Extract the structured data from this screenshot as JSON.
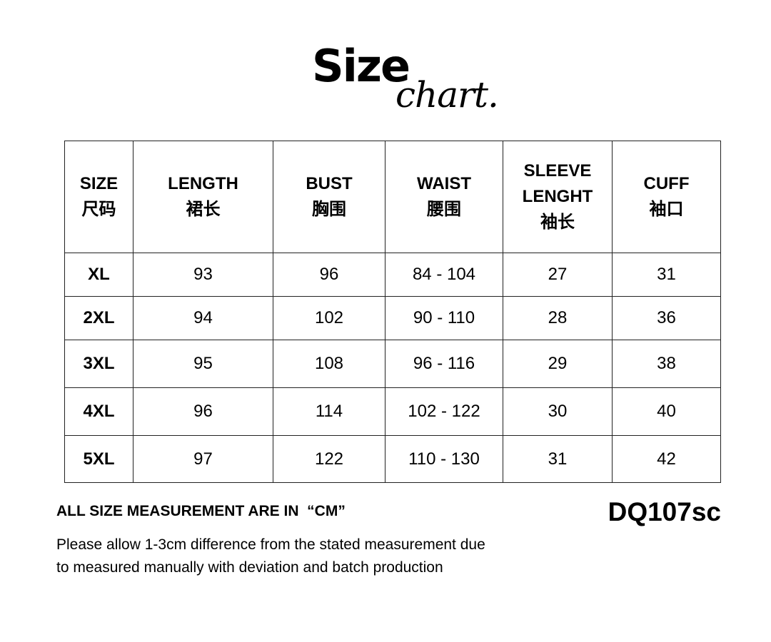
{
  "title": {
    "main": "Size",
    "script": "chart."
  },
  "table": {
    "headers": [
      {
        "en": "SIZE",
        "zh": "尺码"
      },
      {
        "en": "LENGTH",
        "zh": "裙长"
      },
      {
        "en": "BUST",
        "zh": "胸围"
      },
      {
        "en": "WAIST",
        "zh": "腰围"
      },
      {
        "en": "SLEEVE LENGHT",
        "zh": "袖长"
      },
      {
        "en": "CUFF",
        "zh": "袖口"
      }
    ],
    "rows": [
      [
        "XL",
        "93",
        "96",
        "84 - 104",
        "27",
        "31"
      ],
      [
        "2XL",
        "94",
        "102",
        "90 - 110",
        "28",
        "36"
      ],
      [
        "3XL",
        "95",
        "108",
        "96 - 116",
        "29",
        "38"
      ],
      [
        "4XL",
        "96",
        "114",
        "102 - 122",
        "30",
        "40"
      ],
      [
        "5XL",
        "97",
        "122",
        "110 - 130",
        "31",
        "42"
      ]
    ]
  },
  "footer": {
    "unit_note": "ALL SIZE MEASUREMENT ARE IN  “CM”",
    "product_code": "DQ107sc",
    "line1": "Please allow 1-3cm difference from the stated measurement due",
    "line2": "to measured manually with deviation and batch production"
  }
}
